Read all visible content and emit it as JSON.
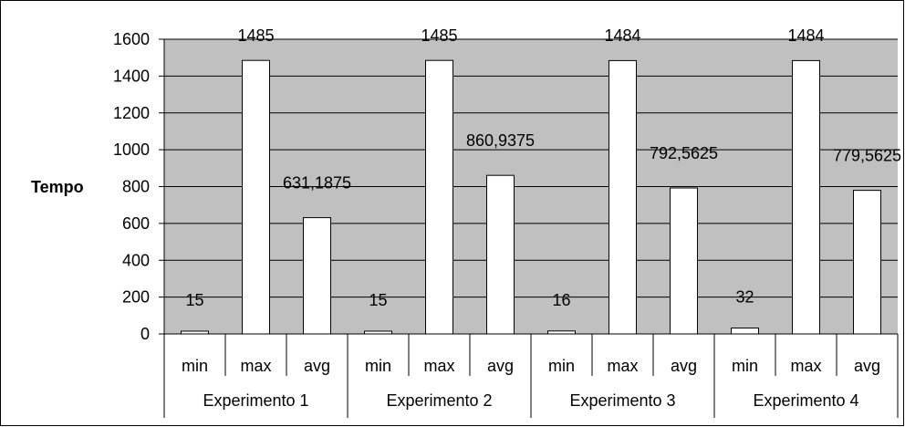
{
  "chart_data": {
    "type": "bar",
    "ylabel": "Tempo",
    "xlabel": "",
    "ylim": [
      0,
      1600
    ],
    "yticks": [
      "0",
      "200",
      "400",
      "600",
      "800",
      "1000",
      "1200",
      "1400",
      "1600"
    ],
    "grid": true,
    "legend": "none",
    "groups": [
      {
        "label": "Experimento 1",
        "bars": [
          {
            "category": "min",
            "value": 15,
            "label": "15"
          },
          {
            "category": "max",
            "value": 1485,
            "label": "1485"
          },
          {
            "category": "avg",
            "value": 631.1875,
            "label": "631,1875"
          }
        ]
      },
      {
        "label": "Experimento 2",
        "bars": [
          {
            "category": "min",
            "value": 15,
            "label": "15"
          },
          {
            "category": "max",
            "value": 1485,
            "label": "1485"
          },
          {
            "category": "avg",
            "value": 860.9375,
            "label": "860,9375"
          }
        ]
      },
      {
        "label": "Experimento 3",
        "bars": [
          {
            "category": "min",
            "value": 16,
            "label": "16"
          },
          {
            "category": "max",
            "value": 1484,
            "label": "1484"
          },
          {
            "category": "avg",
            "value": 792.5625,
            "label": "792,5625"
          }
        ]
      },
      {
        "label": "Experimento 4",
        "bars": [
          {
            "category": "min",
            "value": 32,
            "label": "32"
          },
          {
            "category": "max",
            "value": 1484,
            "label": "1484"
          },
          {
            "category": "avg",
            "value": 779.5625,
            "label": "779,5625"
          }
        ]
      }
    ],
    "colors": {
      "plot_background": "#c0c0c0",
      "bar_fill": "#ffffff",
      "bar_stroke": "#000000",
      "gridline": "#000000"
    }
  }
}
